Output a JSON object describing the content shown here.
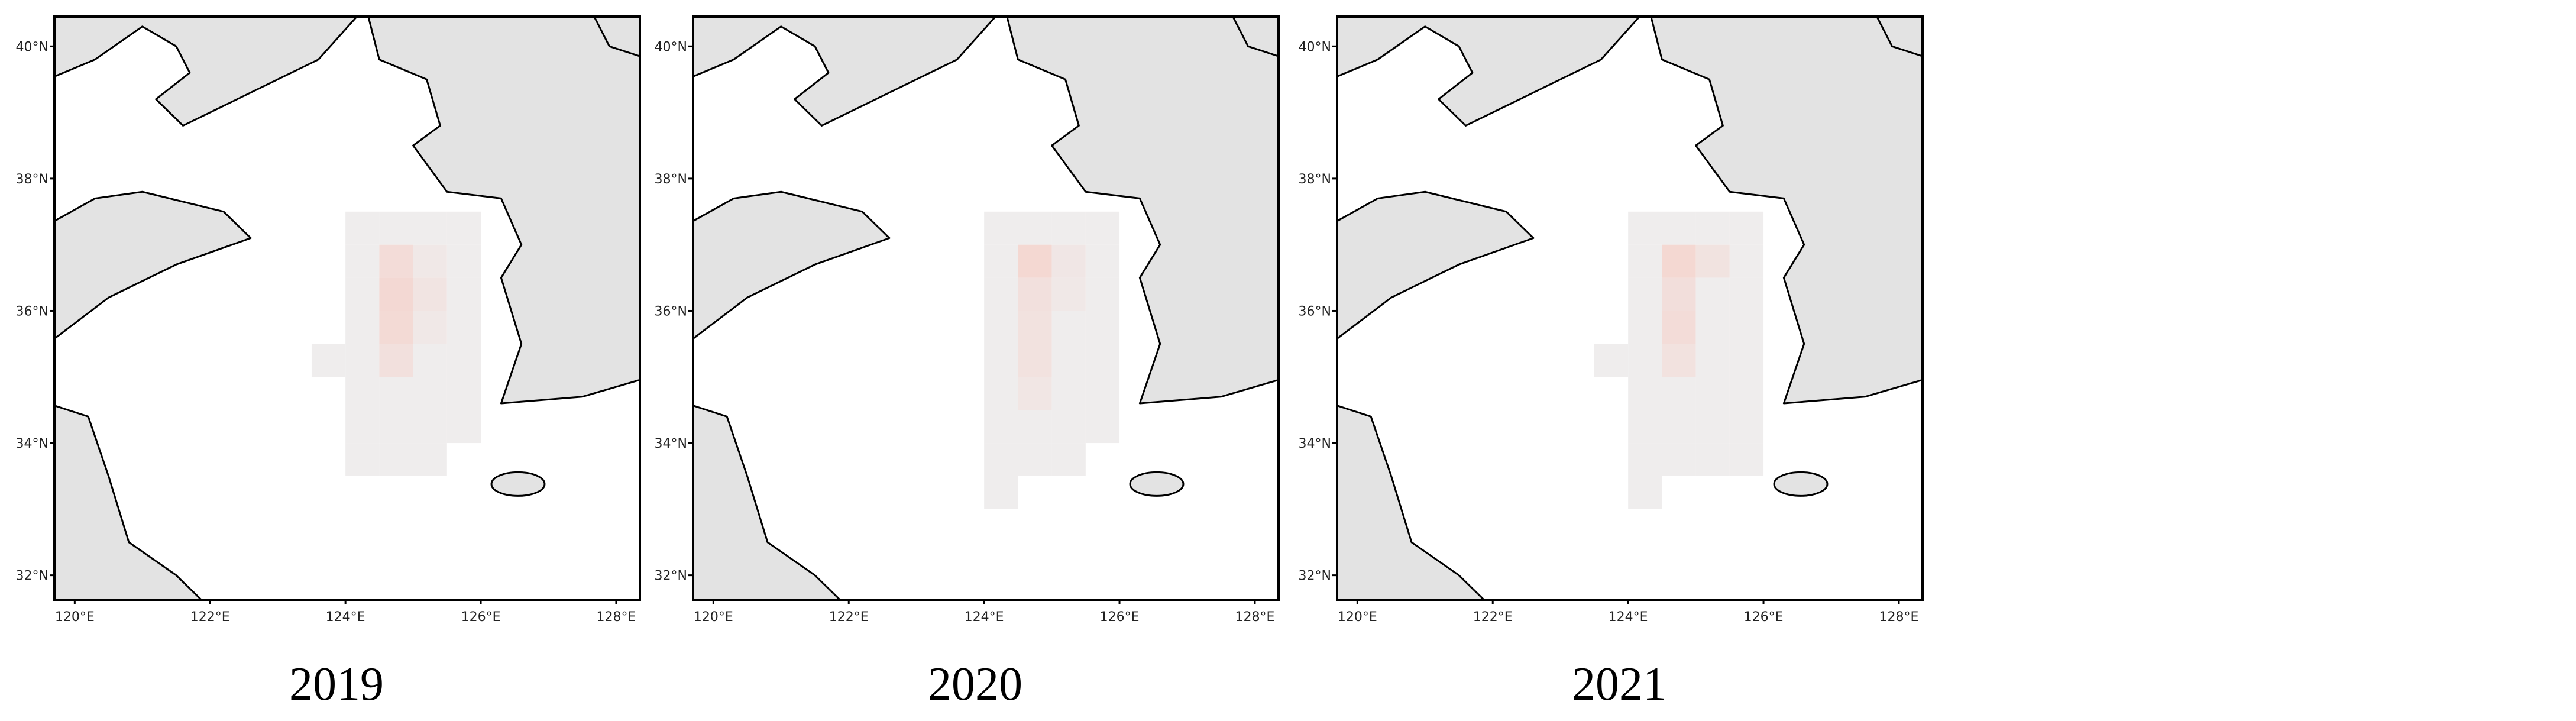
{
  "panels": [
    {
      "label": "2019"
    },
    {
      "label": "2020"
    },
    {
      "label": "2021"
    }
  ],
  "lat_ticks": [
    {
      "value": 40,
      "label": "40°N"
    },
    {
      "value": 38,
      "label": "38°N"
    },
    {
      "value": 36,
      "label": "36°N"
    },
    {
      "value": 34,
      "label": "34°N"
    },
    {
      "value": 32,
      "label": "32°N"
    }
  ],
  "lon_ticks": [
    {
      "value": 120,
      "label": "120°E"
    },
    {
      "value": 122,
      "label": "122°E"
    },
    {
      "value": 124,
      "label": "124°E"
    },
    {
      "value": 126,
      "label": "126°E"
    },
    {
      "value": 128,
      "label": "128°E"
    }
  ]
}
